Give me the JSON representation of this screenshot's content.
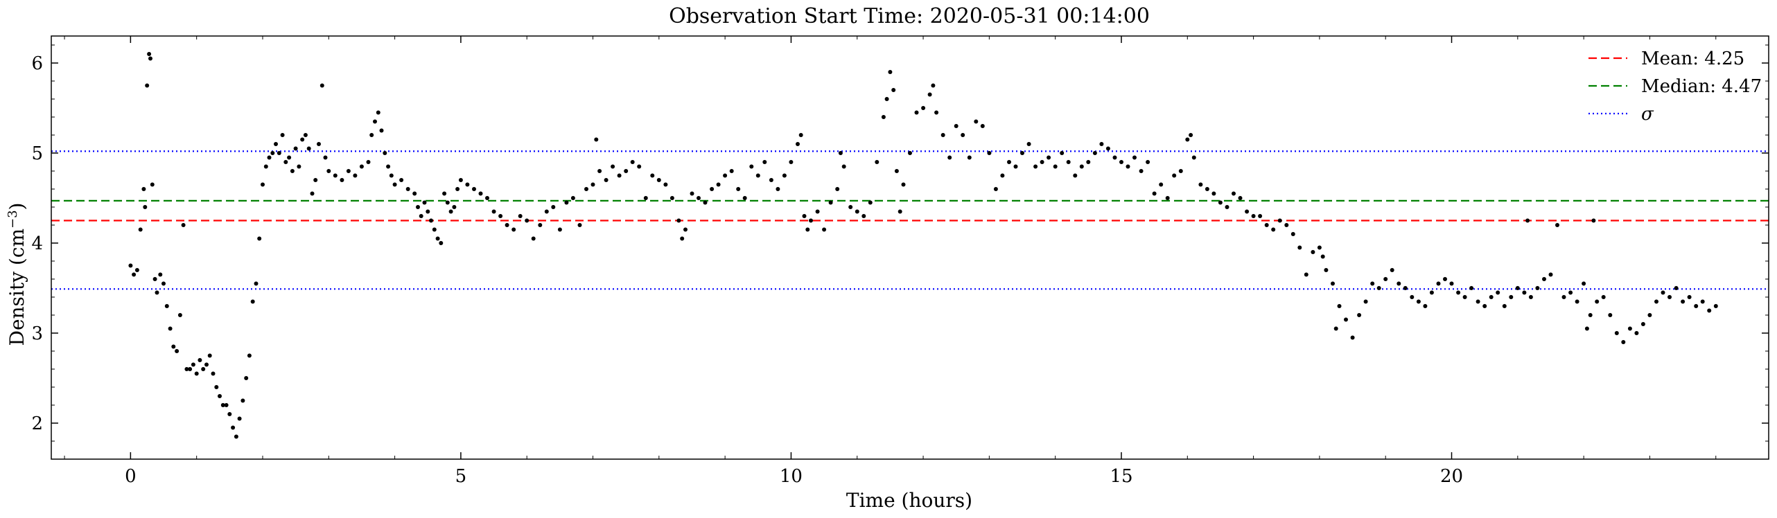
{
  "chart_data": {
    "type": "scatter",
    "title": "Observation Start Time: 2020-05-31 00:14:00",
    "xlabel": "Time (hours)",
    "ylabel": "Density (cm",
    "ylabel_exponent": "−3",
    "ylabel_close": ")",
    "xlim": [
      -1.2,
      24.8
    ],
    "ylim": [
      1.6,
      6.3
    ],
    "x_ticks": [
      0,
      5,
      10,
      15,
      20
    ],
    "y_ticks": [
      2,
      3,
      4,
      5,
      6
    ],
    "x_ticks_labels": [
      "0",
      "5",
      "10",
      "15",
      "20"
    ],
    "y_ticks_labels": [
      "2",
      "3",
      "4",
      "5",
      "6"
    ],
    "grid": false,
    "legend_position": "top-right",
    "point_color": "#000000",
    "reference_lines": [
      {
        "name": "Mean: 4.25",
        "value": 4.25,
        "color": "#ff0000",
        "style": "dashed"
      },
      {
        "name": "Median: 4.47",
        "value": 4.47,
        "color": "#008000",
        "style": "dashed"
      },
      {
        "name": "σ",
        "value": 5.02,
        "color": "#0000ff",
        "style": "dotted"
      },
      {
        "value": 3.49,
        "color": "#0000ff",
        "style": "dotted"
      }
    ],
    "legend": [
      {
        "label": "Mean: 4.25",
        "color": "#ff0000",
        "style": "dashed"
      },
      {
        "label": "Median: 4.47",
        "color": "#008000",
        "style": "dashed"
      },
      {
        "label": "σ",
        "color": "#0000ff",
        "style": "dotted"
      }
    ],
    "series": [
      {
        "points": [
          [
            0.0,
            3.75
          ],
          [
            0.05,
            3.65
          ],
          [
            0.1,
            3.7
          ],
          [
            0.15,
            4.15
          ],
          [
            0.2,
            4.6
          ],
          [
            0.22,
            4.4
          ],
          [
            0.25,
            5.75
          ],
          [
            0.28,
            6.1
          ],
          [
            0.3,
            6.05
          ],
          [
            0.33,
            4.65
          ],
          [
            0.37,
            3.6
          ],
          [
            0.4,
            3.45
          ],
          [
            0.45,
            3.65
          ],
          [
            0.5,
            3.55
          ],
          [
            0.55,
            3.3
          ],
          [
            0.6,
            3.05
          ],
          [
            0.65,
            2.85
          ],
          [
            0.7,
            2.8
          ],
          [
            0.75,
            3.2
          ],
          [
            0.8,
            4.2
          ],
          [
            0.85,
            2.6
          ],
          [
            0.9,
            2.6
          ],
          [
            0.95,
            2.65
          ],
          [
            1.0,
            2.55
          ],
          [
            1.05,
            2.7
          ],
          [
            1.1,
            2.6
          ],
          [
            1.15,
            2.65
          ],
          [
            1.2,
            2.75
          ],
          [
            1.25,
            2.55
          ],
          [
            1.3,
            2.4
          ],
          [
            1.35,
            2.3
          ],
          [
            1.4,
            2.2
          ],
          [
            1.45,
            2.2
          ],
          [
            1.5,
            2.1
          ],
          [
            1.55,
            1.95
          ],
          [
            1.6,
            1.85
          ],
          [
            1.65,
            2.05
          ],
          [
            1.7,
            2.25
          ],
          [
            1.75,
            2.5
          ],
          [
            1.8,
            2.75
          ],
          [
            1.85,
            3.35
          ],
          [
            1.9,
            3.55
          ],
          [
            1.95,
            4.05
          ],
          [
            2.0,
            4.65
          ],
          [
            2.05,
            4.85
          ],
          [
            2.1,
            4.95
          ],
          [
            2.15,
            5.0
          ],
          [
            2.2,
            5.1
          ],
          [
            2.25,
            5.0
          ],
          [
            2.3,
            5.2
          ],
          [
            2.35,
            4.9
          ],
          [
            2.4,
            4.95
          ],
          [
            2.45,
            4.8
          ],
          [
            2.5,
            5.05
          ],
          [
            2.55,
            4.85
          ],
          [
            2.6,
            5.15
          ],
          [
            2.65,
            5.2
          ],
          [
            2.7,
            5.05
          ],
          [
            2.75,
            4.55
          ],
          [
            2.8,
            4.7
          ],
          [
            2.85,
            5.1
          ],
          [
            2.9,
            5.75
          ],
          [
            2.95,
            4.95
          ],
          [
            3.0,
            4.8
          ],
          [
            3.1,
            4.75
          ],
          [
            3.2,
            4.7
          ],
          [
            3.3,
            4.8
          ],
          [
            3.4,
            4.75
          ],
          [
            3.5,
            4.85
          ],
          [
            3.6,
            4.9
          ],
          [
            3.65,
            5.2
          ],
          [
            3.7,
            5.35
          ],
          [
            3.75,
            5.45
          ],
          [
            3.8,
            5.25
          ],
          [
            3.85,
            5.0
          ],
          [
            3.9,
            4.85
          ],
          [
            3.95,
            4.75
          ],
          [
            4.0,
            4.65
          ],
          [
            4.1,
            4.7
          ],
          [
            4.2,
            4.6
          ],
          [
            4.3,
            4.55
          ],
          [
            4.35,
            4.4
          ],
          [
            4.4,
            4.3
          ],
          [
            4.45,
            4.45
          ],
          [
            4.5,
            4.35
          ],
          [
            4.55,
            4.25
          ],
          [
            4.6,
            4.15
          ],
          [
            4.65,
            4.05
          ],
          [
            4.7,
            4.0
          ],
          [
            4.75,
            4.55
          ],
          [
            4.8,
            4.45
          ],
          [
            4.85,
            4.35
          ],
          [
            4.9,
            4.4
          ],
          [
            4.95,
            4.6
          ],
          [
            5.0,
            4.7
          ],
          [
            5.1,
            4.65
          ],
          [
            5.2,
            4.6
          ],
          [
            5.3,
            4.55
          ],
          [
            5.4,
            4.5
          ],
          [
            5.5,
            4.35
          ],
          [
            5.6,
            4.3
          ],
          [
            5.7,
            4.2
          ],
          [
            5.8,
            4.15
          ],
          [
            5.9,
            4.3
          ],
          [
            6.0,
            4.25
          ],
          [
            6.1,
            4.05
          ],
          [
            6.2,
            4.2
          ],
          [
            6.3,
            4.35
          ],
          [
            6.4,
            4.4
          ],
          [
            6.5,
            4.15
          ],
          [
            6.6,
            4.45
          ],
          [
            6.7,
            4.5
          ],
          [
            6.8,
            4.2
          ],
          [
            6.9,
            4.6
          ],
          [
            7.0,
            4.65
          ],
          [
            7.05,
            5.15
          ],
          [
            7.1,
            4.8
          ],
          [
            7.2,
            4.7
          ],
          [
            7.3,
            4.85
          ],
          [
            7.4,
            4.75
          ],
          [
            7.5,
            4.8
          ],
          [
            7.6,
            4.9
          ],
          [
            7.7,
            4.85
          ],
          [
            7.8,
            4.5
          ],
          [
            7.9,
            4.75
          ],
          [
            8.0,
            4.7
          ],
          [
            8.1,
            4.65
          ],
          [
            8.2,
            4.5
          ],
          [
            8.3,
            4.25
          ],
          [
            8.35,
            4.05
          ],
          [
            8.4,
            4.15
          ],
          [
            8.5,
            4.55
          ],
          [
            8.6,
            4.5
          ],
          [
            8.7,
            4.45
          ],
          [
            8.8,
            4.6
          ],
          [
            8.9,
            4.65
          ],
          [
            9.0,
            4.75
          ],
          [
            9.1,
            4.8
          ],
          [
            9.2,
            4.6
          ],
          [
            9.3,
            4.5
          ],
          [
            9.4,
            4.85
          ],
          [
            9.5,
            4.75
          ],
          [
            9.6,
            4.9
          ],
          [
            9.7,
            4.7
          ],
          [
            9.8,
            4.6
          ],
          [
            9.9,
            4.75
          ],
          [
            10.0,
            4.9
          ],
          [
            10.1,
            5.1
          ],
          [
            10.15,
            5.2
          ],
          [
            10.2,
            4.3
          ],
          [
            10.25,
            4.15
          ],
          [
            10.3,
            4.25
          ],
          [
            10.4,
            4.35
          ],
          [
            10.5,
            4.15
          ],
          [
            10.6,
            4.45
          ],
          [
            10.7,
            4.6
          ],
          [
            10.75,
            5.0
          ],
          [
            10.8,
            4.85
          ],
          [
            10.9,
            4.4
          ],
          [
            11.0,
            4.35
          ],
          [
            11.1,
            4.3
          ],
          [
            11.2,
            4.45
          ],
          [
            11.3,
            4.9
          ],
          [
            11.4,
            5.4
          ],
          [
            11.45,
            5.6
          ],
          [
            11.5,
            5.9
          ],
          [
            11.55,
            5.7
          ],
          [
            11.6,
            4.8
          ],
          [
            11.65,
            4.35
          ],
          [
            11.7,
            4.65
          ],
          [
            11.8,
            5.0
          ],
          [
            11.9,
            5.45
          ],
          [
            12.0,
            5.5
          ],
          [
            12.1,
            5.65
          ],
          [
            12.15,
            5.75
          ],
          [
            12.2,
            5.45
          ],
          [
            12.3,
            5.2
          ],
          [
            12.4,
            4.95
          ],
          [
            12.5,
            5.3
          ],
          [
            12.6,
            5.2
          ],
          [
            12.7,
            4.95
          ],
          [
            12.8,
            5.35
          ],
          [
            12.9,
            5.3
          ],
          [
            13.0,
            5.0
          ],
          [
            13.1,
            4.6
          ],
          [
            13.2,
            4.75
          ],
          [
            13.3,
            4.9
          ],
          [
            13.4,
            4.85
          ],
          [
            13.5,
            5.0
          ],
          [
            13.6,
            5.1
          ],
          [
            13.7,
            4.85
          ],
          [
            13.8,
            4.9
          ],
          [
            13.9,
            4.95
          ],
          [
            14.0,
            4.85
          ],
          [
            14.1,
            5.0
          ],
          [
            14.2,
            4.9
          ],
          [
            14.3,
            4.75
          ],
          [
            14.4,
            4.85
          ],
          [
            14.5,
            4.9
          ],
          [
            14.6,
            5.0
          ],
          [
            14.7,
            5.1
          ],
          [
            14.8,
            5.05
          ],
          [
            14.9,
            4.95
          ],
          [
            15.0,
            4.9
          ],
          [
            15.1,
            4.85
          ],
          [
            15.2,
            4.95
          ],
          [
            15.3,
            4.8
          ],
          [
            15.4,
            4.9
          ],
          [
            15.5,
            4.55
          ],
          [
            15.6,
            4.65
          ],
          [
            15.7,
            4.5
          ],
          [
            15.8,
            4.75
          ],
          [
            15.9,
            4.8
          ],
          [
            16.0,
            5.15
          ],
          [
            16.05,
            5.2
          ],
          [
            16.1,
            4.95
          ],
          [
            16.2,
            4.65
          ],
          [
            16.3,
            4.6
          ],
          [
            16.4,
            4.55
          ],
          [
            16.5,
            4.45
          ],
          [
            16.6,
            4.4
          ],
          [
            16.7,
            4.55
          ],
          [
            16.8,
            4.5
          ],
          [
            16.9,
            4.35
          ],
          [
            17.0,
            4.3
          ],
          [
            17.1,
            4.3
          ],
          [
            17.2,
            4.2
          ],
          [
            17.3,
            4.15
          ],
          [
            17.4,
            4.25
          ],
          [
            17.5,
            4.2
          ],
          [
            17.6,
            4.1
          ],
          [
            17.7,
            3.95
          ],
          [
            17.8,
            3.65
          ],
          [
            17.9,
            3.9
          ],
          [
            18.0,
            3.95
          ],
          [
            18.05,
            3.85
          ],
          [
            18.1,
            3.7
          ],
          [
            18.2,
            3.55
          ],
          [
            18.25,
            3.05
          ],
          [
            18.3,
            3.3
          ],
          [
            18.4,
            3.15
          ],
          [
            18.5,
            2.95
          ],
          [
            18.6,
            3.2
          ],
          [
            18.7,
            3.35
          ],
          [
            18.8,
            3.55
          ],
          [
            18.9,
            3.5
          ],
          [
            19.0,
            3.6
          ],
          [
            19.1,
            3.7
          ],
          [
            19.2,
            3.55
          ],
          [
            19.3,
            3.5
          ],
          [
            19.4,
            3.4
          ],
          [
            19.5,
            3.35
          ],
          [
            19.6,
            3.3
          ],
          [
            19.7,
            3.45
          ],
          [
            19.8,
            3.55
          ],
          [
            19.9,
            3.6
          ],
          [
            20.0,
            3.55
          ],
          [
            20.1,
            3.45
          ],
          [
            20.2,
            3.4
          ],
          [
            20.3,
            3.5
          ],
          [
            20.4,
            3.35
          ],
          [
            20.5,
            3.3
          ],
          [
            20.6,
            3.4
          ],
          [
            20.7,
            3.45
          ],
          [
            20.8,
            3.3
          ],
          [
            20.9,
            3.4
          ],
          [
            21.0,
            3.5
          ],
          [
            21.1,
            3.45
          ],
          [
            21.15,
            4.25
          ],
          [
            21.2,
            3.4
          ],
          [
            21.3,
            3.5
          ],
          [
            21.4,
            3.6
          ],
          [
            21.5,
            3.65
          ],
          [
            21.6,
            4.2
          ],
          [
            21.7,
            3.4
          ],
          [
            21.8,
            3.45
          ],
          [
            21.9,
            3.35
          ],
          [
            22.0,
            3.55
          ],
          [
            22.05,
            3.05
          ],
          [
            22.1,
            3.2
          ],
          [
            22.15,
            4.25
          ],
          [
            22.2,
            3.35
          ],
          [
            22.3,
            3.4
          ],
          [
            22.4,
            3.2
          ],
          [
            22.5,
            3.0
          ],
          [
            22.6,
            2.9
          ],
          [
            22.7,
            3.05
          ],
          [
            22.8,
            3.0
          ],
          [
            22.9,
            3.1
          ],
          [
            23.0,
            3.2
          ],
          [
            23.1,
            3.35
          ],
          [
            23.2,
            3.45
          ],
          [
            23.3,
            3.4
          ],
          [
            23.4,
            3.5
          ],
          [
            23.5,
            3.35
          ],
          [
            23.6,
            3.4
          ],
          [
            23.7,
            3.3
          ],
          [
            23.8,
            3.35
          ],
          [
            23.9,
            3.25
          ],
          [
            24.0,
            3.3
          ]
        ]
      }
    ]
  }
}
